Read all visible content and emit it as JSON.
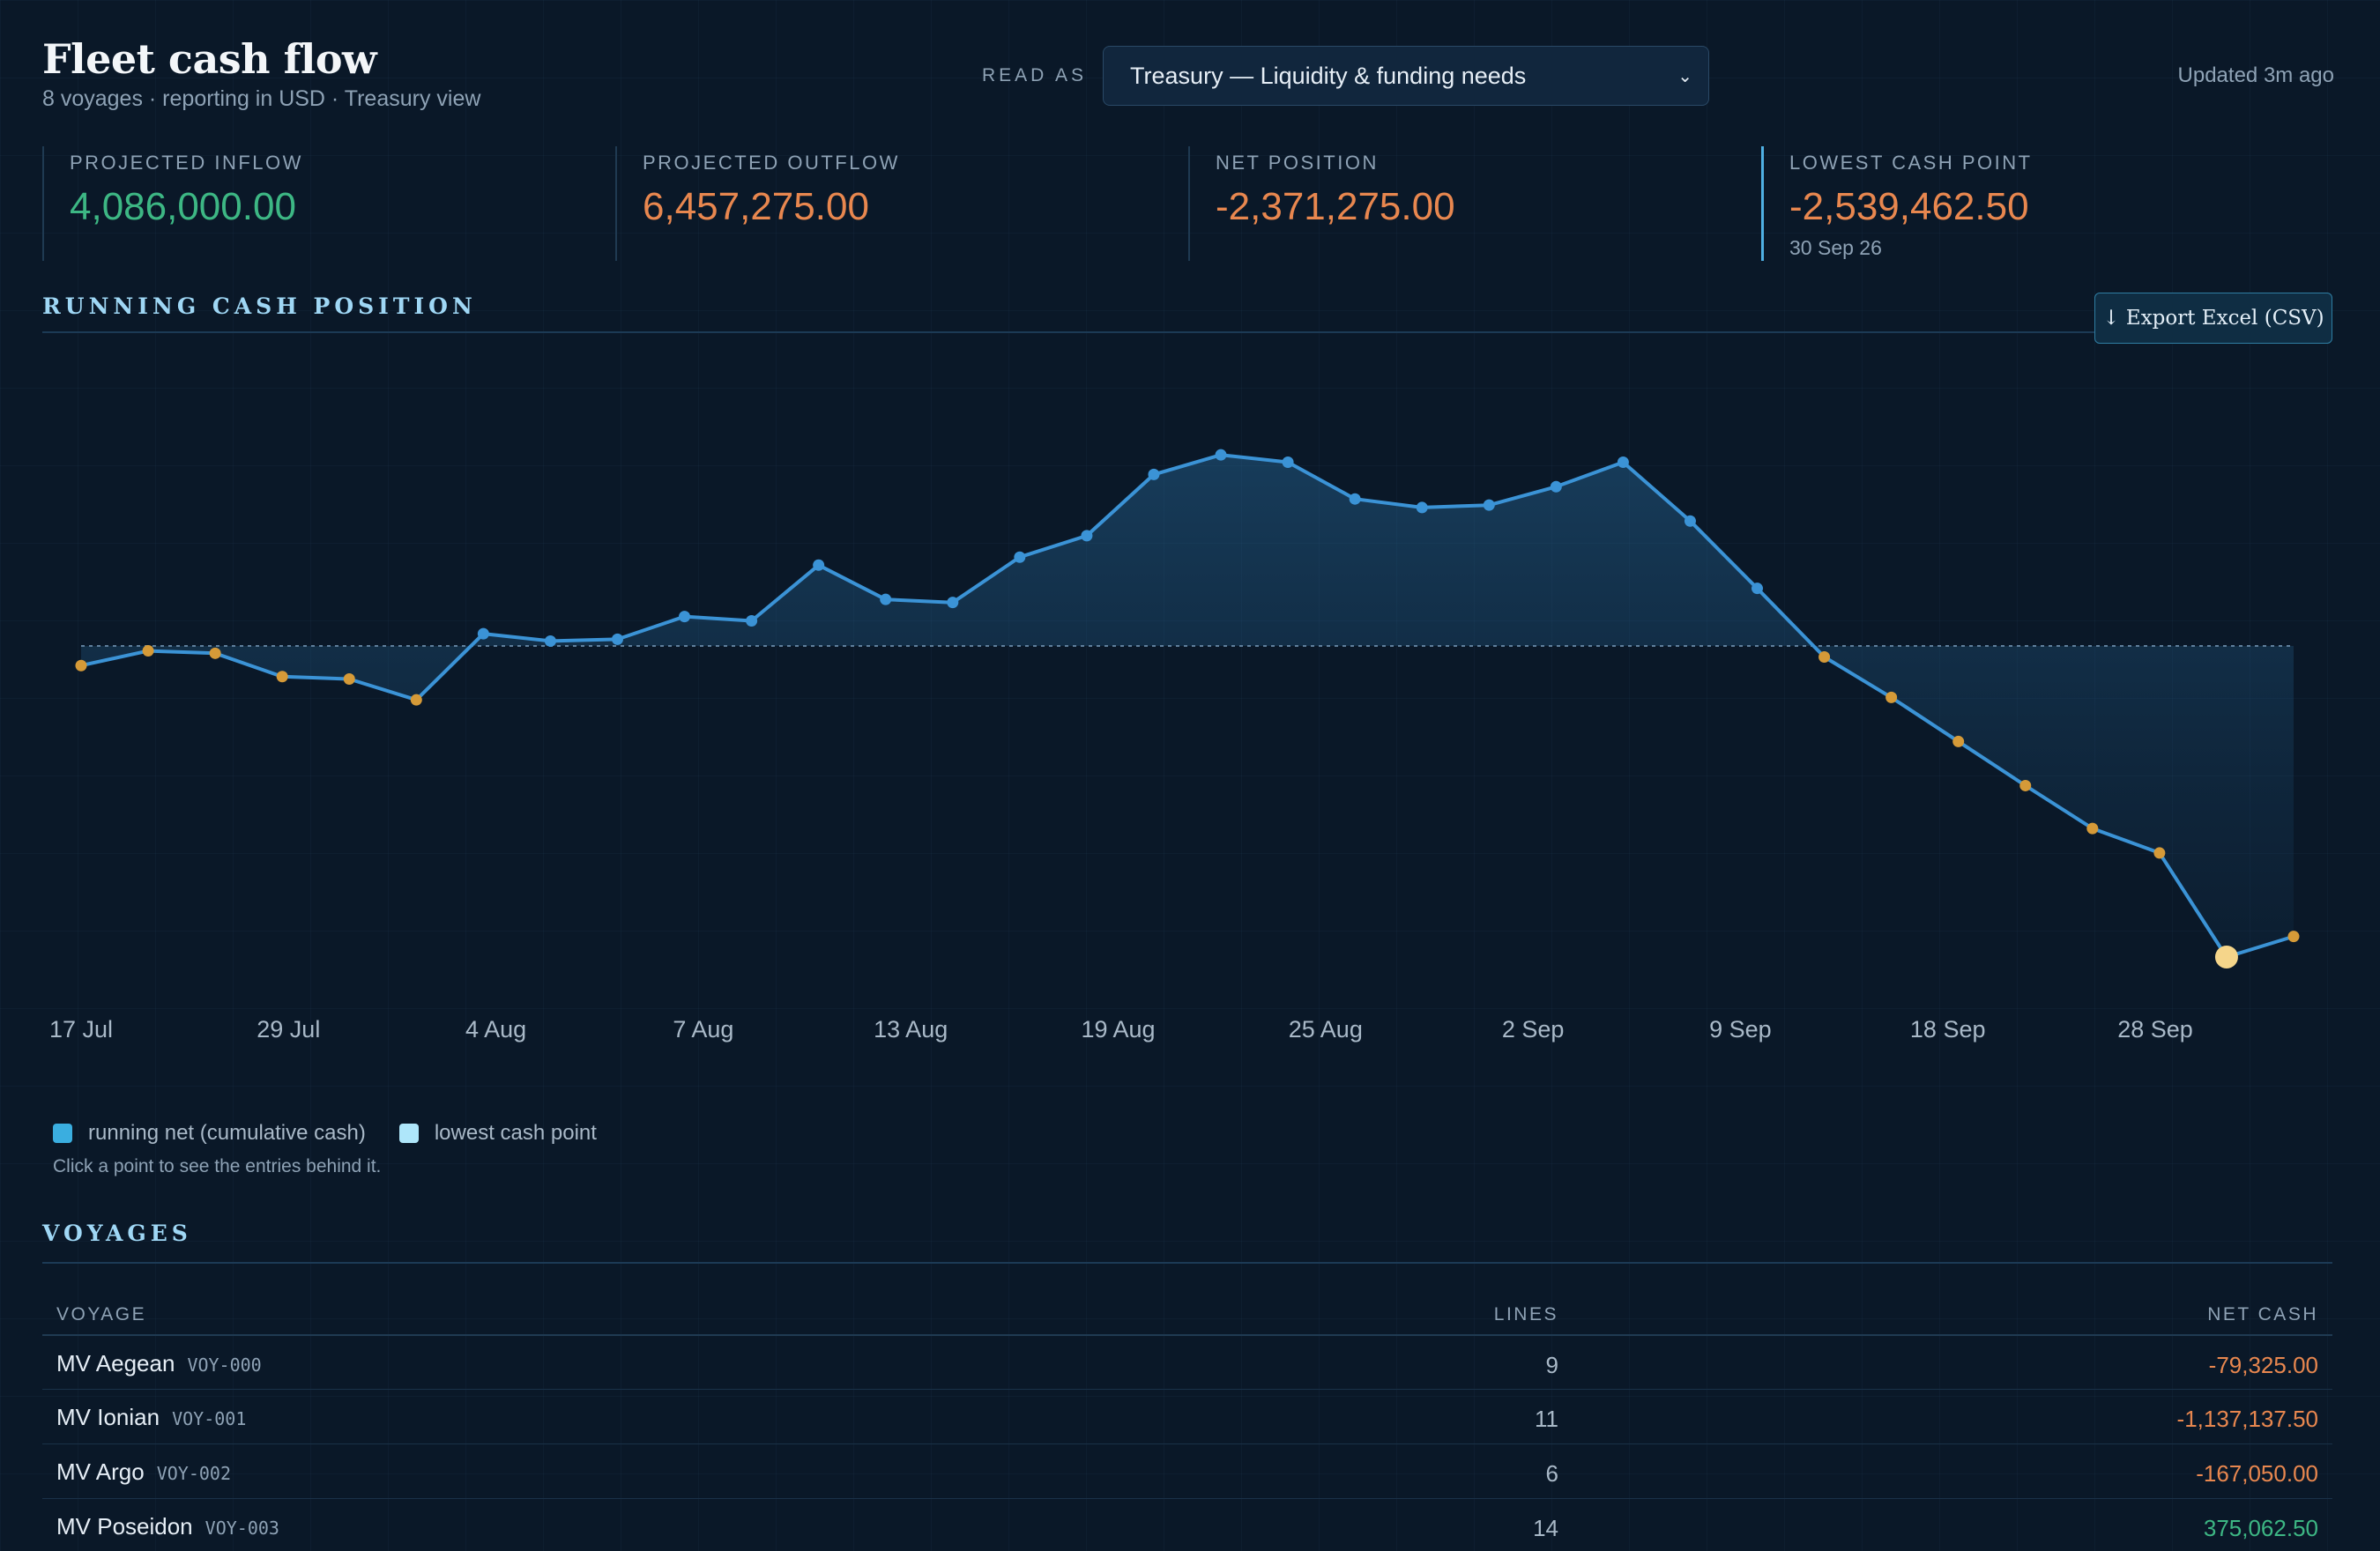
{
  "header": {
    "title": "Fleet cash flow",
    "subtitle": "8 voyages · reporting in USD · Treasury view",
    "read_as_label": "READ AS",
    "read_as_value": "Treasury — Liquidity & funding needs",
    "updated": "Updated 3m ago"
  },
  "kpis": [
    {
      "label": "PROJECTED INFLOW",
      "value": "4,086,000.00",
      "tone": "pos"
    },
    {
      "label": "PROJECTED OUTFLOW",
      "value": "6,457,275.00",
      "tone": "neg"
    },
    {
      "label": "NET POSITION",
      "value": "-2,371,275.00",
      "tone": "neg"
    },
    {
      "label": "LOWEST CASH POINT",
      "value": "-2,539,462.50",
      "sub": "30 Sep 26",
      "tone": "neg"
    }
  ],
  "chart_section": {
    "title": "RUNNING CASH POSITION",
    "export_label": "↓ Export Excel (CSV)"
  },
  "chart_data": {
    "type": "line",
    "series": [
      {
        "name": "running net (cumulative cash)",
        "color": "#3b93d6"
      }
    ],
    "y_units": "USD",
    "y": [
      -160000,
      -40000,
      -60000,
      -250000,
      -270000,
      -440000,
      100000,
      40000,
      55000,
      240000,
      205000,
      660000,
      380000,
      355000,
      725000,
      900000,
      1400000,
      1560000,
      1500000,
      1200000,
      1130000,
      1150000,
      1300000,
      1500000,
      1020000,
      470000,
      -90000,
      -420000,
      -780000,
      -1140000,
      -1490000,
      -1690000,
      -2539462.5,
      -2371275
    ],
    "x_tick_labels": [
      "17 Jul",
      "29 Jul",
      "4 Aug",
      "7 Aug",
      "13 Aug",
      "19 Aug",
      "25 Aug",
      "2 Sep",
      "9 Sep",
      "18 Sep",
      "28 Sep"
    ],
    "lowest_point": {
      "label": "30 Sep 26",
      "value": -2539462.5
    },
    "zero_line": true,
    "colors": {
      "positive_marker": "#3b93d6",
      "negative_marker": "#d59a38",
      "lowest_marker": "#f5d58a"
    }
  },
  "legend": {
    "items": [
      {
        "label": "running net (cumulative cash)",
        "color": "#3aaee0"
      },
      {
        "label": "lowest cash point",
        "color": "#aee6fa"
      }
    ],
    "hint": "Click a point to see the entries behind it."
  },
  "voyages": {
    "title": "VOYAGES",
    "columns": {
      "voyage": "VOYAGE",
      "lines": "LINES",
      "net": "NET CASH"
    },
    "rows": [
      {
        "name": "MV Aegean",
        "code": "VOY-000",
        "lines": "9",
        "net": "-79,325.00",
        "tone": "neg"
      },
      {
        "name": "MV Ionian",
        "code": "VOY-001",
        "lines": "11",
        "net": "-1,137,137.50",
        "tone": "neg"
      },
      {
        "name": "MV Argo",
        "code": "VOY-002",
        "lines": "6",
        "net": "-167,050.00",
        "tone": "neg"
      },
      {
        "name": "MV Poseidon",
        "code": "VOY-003",
        "lines": "14",
        "net": "375,062.50",
        "tone": "pos"
      }
    ]
  }
}
